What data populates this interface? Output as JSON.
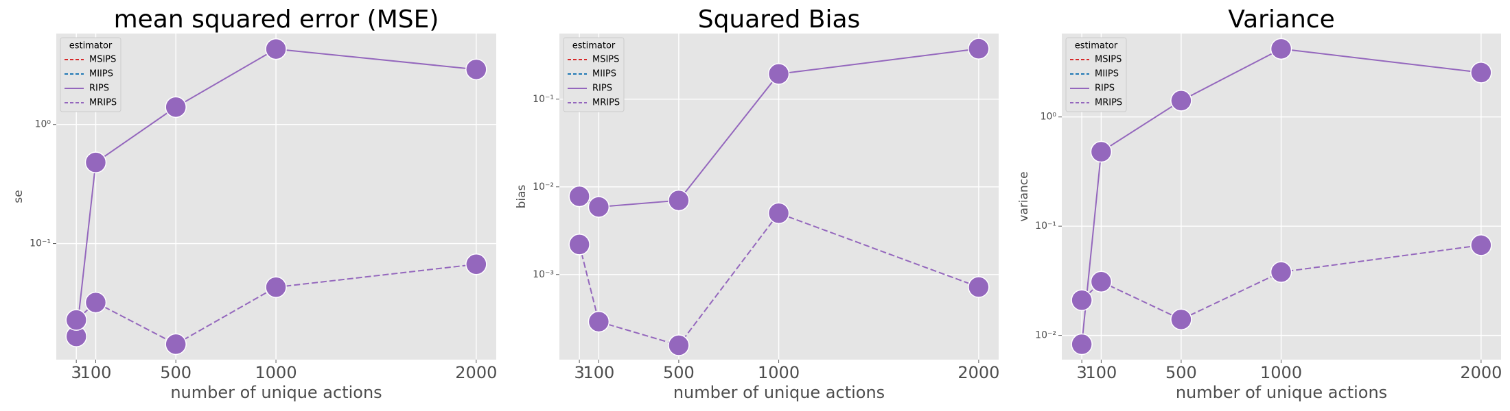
{
  "chart_data": [
    {
      "type": "line",
      "title": "mean squared error (MSE)",
      "xlabel": "number of unique actions",
      "ylabel": "se",
      "x": [
        3,
        100,
        500,
        1000,
        2000
      ],
      "xlim": [
        -97,
        2100
      ],
      "xticks": [
        3,
        100,
        500,
        1000,
        2000
      ],
      "yscale": "log",
      "ylim": [
        0.0106,
        5.8
      ],
      "yticks": [
        {
          "value": 0.1,
          "label": "10⁻¹"
        },
        {
          "value": 1,
          "label": "10⁰"
        }
      ],
      "grid": true,
      "legend_title": "estimator",
      "legend": "upper left",
      "series": [
        {
          "name": "MSIPS",
          "color": "#d62728",
          "linestyle": "dashed",
          "values": [
            null,
            null,
            null,
            null,
            null
          ]
        },
        {
          "name": "MIIPS",
          "color": "#1f77b4",
          "linestyle": "dashed",
          "values": [
            null,
            null,
            null,
            null,
            null
          ]
        },
        {
          "name": "RIPS",
          "color": "#9467bd",
          "linestyle": "solid",
          "values": [
            0.0166,
            0.48,
            1.4,
            4.3,
            2.9
          ]
        },
        {
          "name": "MRIPS",
          "color": "#9467bd",
          "linestyle": "dashed",
          "values": [
            0.0228,
            0.032,
            0.0143,
            0.043,
            0.067
          ]
        }
      ]
    },
    {
      "type": "line",
      "title": "Squared Bias",
      "xlabel": "number of unique actions",
      "ylabel": "bias",
      "x": [
        3,
        100,
        500,
        1000,
        2000
      ],
      "xlim": [
        -97,
        2100
      ],
      "xticks": [
        3,
        100,
        500,
        1000,
        2000
      ],
      "yscale": "log",
      "ylim": [
        0.000107,
        0.56
      ],
      "yticks": [
        {
          "value": 0.001,
          "label": "10⁻³"
        },
        {
          "value": 0.01,
          "label": "10⁻²"
        },
        {
          "value": 0.1,
          "label": "10⁻¹"
        }
      ],
      "grid": true,
      "legend_title": "estimator",
      "legend": "upper left",
      "series": [
        {
          "name": "MSIPS",
          "color": "#d62728",
          "linestyle": "dashed",
          "values": [
            null,
            null,
            null,
            null,
            null
          ]
        },
        {
          "name": "MIIPS",
          "color": "#1f77b4",
          "linestyle": "dashed",
          "values": [
            null,
            null,
            null,
            null,
            null
          ]
        },
        {
          "name": "RIPS",
          "color": "#9467bd",
          "linestyle": "solid",
          "values": [
            0.0078,
            0.0059,
            0.007,
            0.194,
            0.376
          ]
        },
        {
          "name": "MRIPS",
          "color": "#9467bd",
          "linestyle": "dashed",
          "values": [
            0.0022,
            0.00029,
            0.000156,
            0.005,
            0.00072
          ]
        }
      ]
    },
    {
      "type": "line",
      "title": "Variance",
      "xlabel": "number of unique actions",
      "ylabel": "variance",
      "x": [
        3,
        100,
        500,
        1000,
        2000
      ],
      "xlim": [
        -97,
        2100
      ],
      "xticks": [
        3,
        100,
        500,
        1000,
        2000
      ],
      "yscale": "log",
      "ylim": [
        0.006,
        5.8
      ],
      "yticks": [
        {
          "value": 0.01,
          "label": "10⁻²"
        },
        {
          "value": 0.1,
          "label": "10⁻¹"
        },
        {
          "value": 1,
          "label": "10⁰"
        }
      ],
      "grid": true,
      "legend_title": "estimator",
      "legend": "upper left",
      "series": [
        {
          "name": "MSIPS",
          "color": "#d62728",
          "linestyle": "dashed",
          "values": [
            null,
            null,
            null,
            null,
            null
          ]
        },
        {
          "name": "MIIPS",
          "color": "#1f77b4",
          "linestyle": "dashed",
          "values": [
            null,
            null,
            null,
            null,
            null
          ]
        },
        {
          "name": "RIPS",
          "color": "#9467bd",
          "linestyle": "solid",
          "values": [
            0.0083,
            0.48,
            1.41,
            4.2,
            2.55
          ]
        },
        {
          "name": "MRIPS",
          "color": "#9467bd",
          "linestyle": "dashed",
          "values": [
            0.021,
            0.031,
            0.014,
            0.038,
            0.067
          ]
        }
      ]
    }
  ]
}
